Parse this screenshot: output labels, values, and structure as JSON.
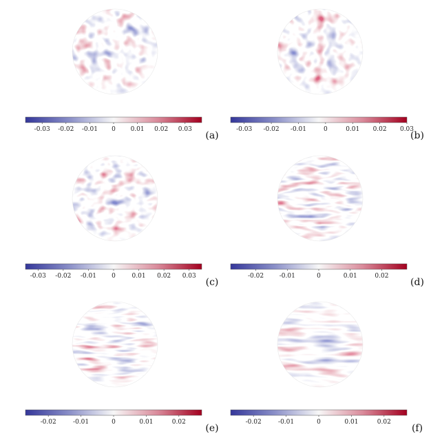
{
  "panels": [
    {
      "label": "(a)",
      "colorbar": {
        "lim": [
          -0.037,
          0.037
        ],
        "ticks": [
          -0.03,
          -0.02,
          -0.01,
          0,
          0.01,
          0.02,
          0.03
        ]
      }
    },
    {
      "label": "(b)",
      "colorbar": {
        "lim": [
          -0.035,
          0.03
        ],
        "ticks": [
          -0.03,
          -0.02,
          -0.01,
          0,
          0.01,
          0.02,
          0.03
        ]
      }
    },
    {
      "label": "(c)",
      "colorbar": {
        "lim": [
          -0.035,
          0.035
        ],
        "ticks": [
          -0.03,
          -0.02,
          -0.01,
          0,
          0.01,
          0.02,
          0.03
        ]
      }
    },
    {
      "label": "(d)",
      "colorbar": {
        "lim": [
          -0.028,
          0.028
        ],
        "ticks": [
          -0.02,
          -0.01,
          0,
          0.01,
          0.02
        ]
      }
    },
    {
      "label": "(e)",
      "colorbar": {
        "lim": [
          -0.027,
          0.027
        ],
        "ticks": [
          -0.02,
          -0.01,
          0,
          0.01,
          0.02
        ]
      }
    },
    {
      "label": "(f)",
      "colorbar": {
        "lim": [
          -0.027,
          0.027
        ],
        "ticks": [
          -0.02,
          -0.01,
          0,
          0.01,
          0.02
        ]
      }
    }
  ]
}
